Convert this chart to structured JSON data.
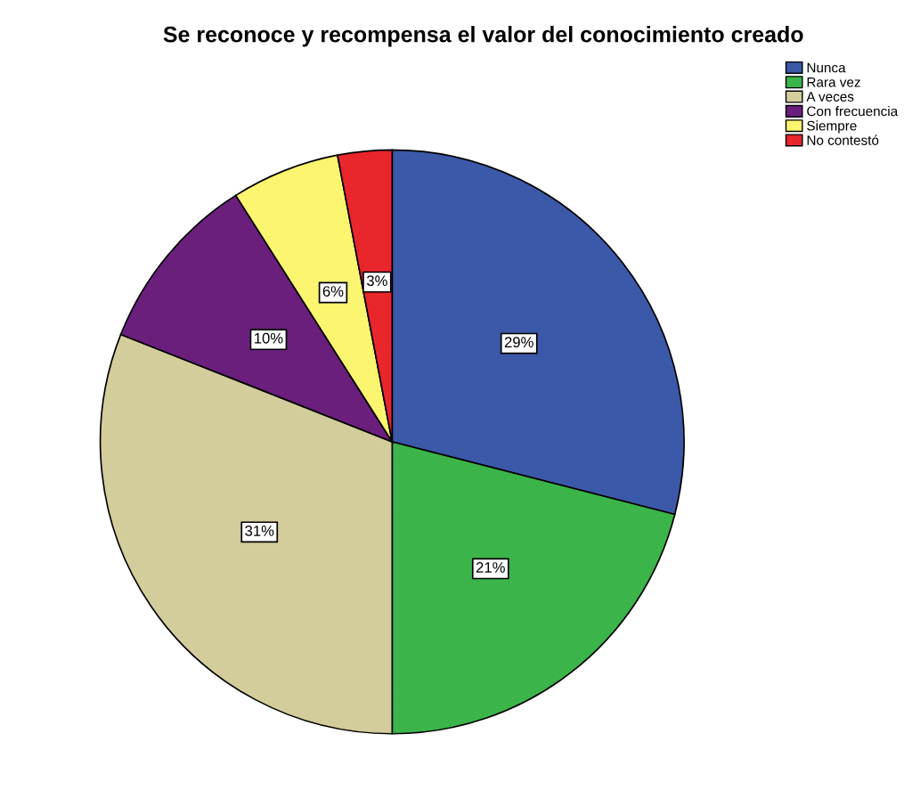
{
  "chart_data": {
    "type": "pie",
    "title": "Se reconoce y recompensa el valor del conocimiento creado",
    "categories": [
      "Nunca",
      "Rara vez",
      "A veces",
      "Con frecuencia",
      "Siempre",
      "No contestó"
    ],
    "values": [
      29,
      21,
      31,
      10,
      6,
      3
    ],
    "value_labels": [
      "29%",
      "21%",
      "31%",
      "10%",
      "6%",
      "3%"
    ],
    "colors": [
      "#3c58a8",
      "#3bb54a",
      "#d3cc9b",
      "#6a1f7d",
      "#fbf570",
      "#e8262c"
    ],
    "legend": "top right"
  }
}
